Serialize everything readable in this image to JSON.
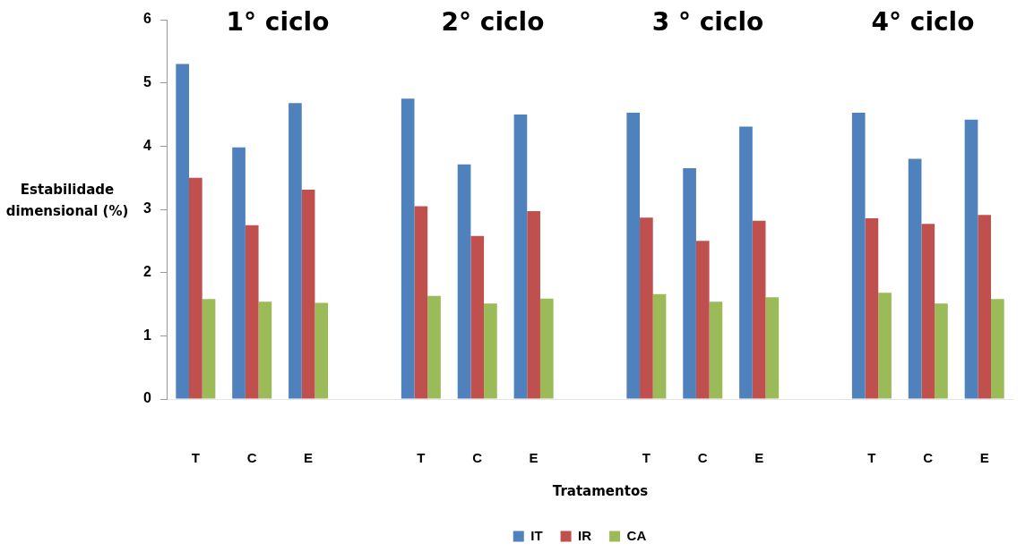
{
  "chart_data": {
    "type": "bar",
    "xlabel": "Tratamentos",
    "ylabel": "Estabilidade dimensional (%)",
    "categories": [
      "T",
      "C",
      "E",
      null,
      "T",
      "C",
      "E",
      null,
      "T",
      "C",
      "E",
      null,
      "T",
      "C",
      "E"
    ],
    "series": [
      {
        "name": "IT",
        "color": "#4f81bd",
        "values": [
          5.3,
          3.98,
          4.68,
          null,
          4.75,
          3.71,
          4.5,
          null,
          4.53,
          3.65,
          4.31,
          null,
          4.53,
          3.8,
          4.42
        ]
      },
      {
        "name": "IR",
        "color": "#c0504d",
        "values": [
          3.5,
          2.75,
          3.31,
          null,
          3.05,
          2.58,
          2.97,
          null,
          2.87,
          2.5,
          2.82,
          null,
          2.86,
          2.77,
          2.91
        ]
      },
      {
        "name": "CA",
        "color": "#9bbb59",
        "values": [
          1.58,
          1.54,
          1.52,
          null,
          1.63,
          1.51,
          1.59,
          null,
          1.66,
          1.54,
          1.61,
          null,
          1.68,
          1.51,
          1.58
        ]
      }
    ],
    "ylim": [
      0,
      6
    ],
    "yticks": [
      0,
      1,
      2,
      3,
      4,
      5,
      6
    ],
    "grid": false,
    "legend": "bottom",
    "annotations": [
      "1° ciclo",
      "2° ciclo",
      "3 ° ciclo",
      "4° ciclo"
    ]
  }
}
